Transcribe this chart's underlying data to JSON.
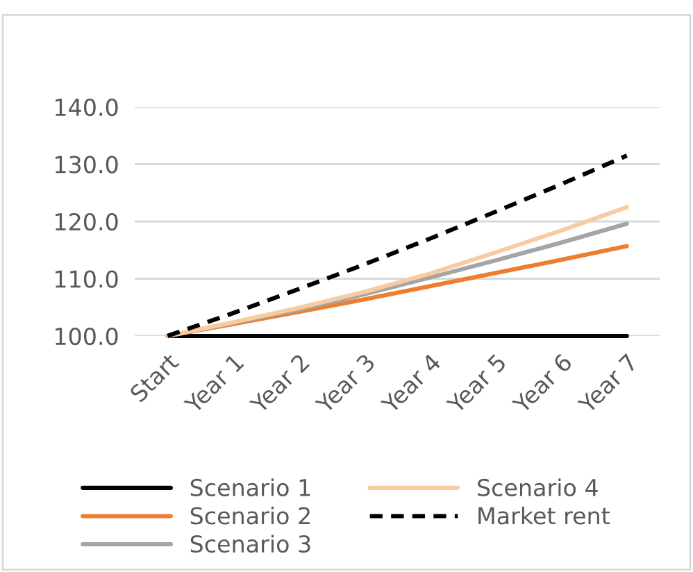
{
  "chart_data": {
    "type": "line",
    "categories": [
      "Start",
      "Year 1",
      "Year 2",
      "Year 3",
      "Year 4",
      "Year 5",
      "Year 6",
      "Year 7"
    ],
    "series": [
      {
        "name": "Scenario 1",
        "color": "#000000",
        "line_style": "solid",
        "values": [
          100,
          100,
          100,
          100,
          100,
          100,
          100,
          100
        ]
      },
      {
        "name": "Scenario 2",
        "color": "#ed7d31",
        "line_style": "solid",
        "values": [
          100,
          102.1,
          104.2,
          106.4,
          108.7,
          111.0,
          113.3,
          115.7
        ]
      },
      {
        "name": "Scenario 3",
        "color": "#a5a5a5",
        "line_style": "solid",
        "values": [
          100,
          102.3,
          104.6,
          107.3,
          110.2,
          113.2,
          116.3,
          119.6
        ]
      },
      {
        "name": "Scenario 4",
        "color": "#f8cba0",
        "line_style": "solid",
        "values": [
          100,
          102.4,
          104.9,
          107.7,
          110.9,
          114.6,
          118.4,
          122.5
        ]
      },
      {
        "name": "Market rent",
        "color": "#000000",
        "line_style": "dashed",
        "values": [
          100,
          104.0,
          108.2,
          112.5,
          117.0,
          121.7,
          126.5,
          131.5
        ]
      }
    ],
    "ylim": [
      100,
      140
    ],
    "yticks": [
      {
        "value": 100,
        "label": "100.0"
      },
      {
        "value": 110,
        "label": "110.0"
      },
      {
        "value": 120,
        "label": "120.0"
      },
      {
        "value": 130,
        "label": "130.0"
      },
      {
        "value": 140,
        "label": "140.0"
      }
    ],
    "grid": "y",
    "legend": "bottom",
    "marker": "none"
  }
}
